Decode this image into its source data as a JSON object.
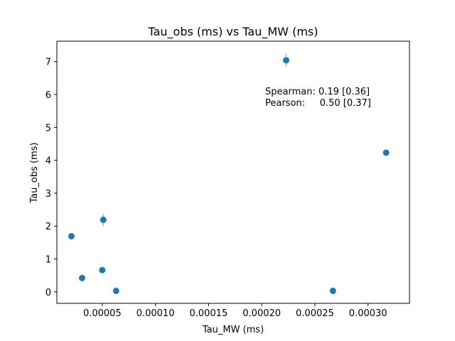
{
  "chart_data": {
    "type": "scatter",
    "title": "Tau_obs (ms) vs Tau_MW (ms)",
    "xlabel": "Tau_MW (ms)",
    "ylabel": "Tau_obs (ms)",
    "xlim": [
      7.3e-06,
      0.000339
    ],
    "ylim": [
      -0.35,
      7.62
    ],
    "xticks": [
      5e-05,
      0.0001,
      0.00015,
      0.0002,
      0.00025,
      0.0003
    ],
    "xtick_labels": [
      "0.00005",
      "0.00010",
      "0.00015",
      "0.00020",
      "0.00025",
      "0.00030"
    ],
    "yticks": [
      0,
      1,
      2,
      3,
      4,
      5,
      6,
      7
    ],
    "ytick_labels": [
      "0",
      "1",
      "2",
      "3",
      "4",
      "5",
      "6",
      "7"
    ],
    "grid": false,
    "series": [
      {
        "color": "#1f77b4",
        "errorbar_color": "#b0b0b0",
        "points": [
          {
            "x": 2.1e-05,
            "y": 1.69,
            "yerr": 0.05
          },
          {
            "x": 3.1e-05,
            "y": 0.42,
            "yerr": 0.04
          },
          {
            "x": 5e-05,
            "y": 0.66,
            "yerr": 0.04
          },
          {
            "x": 5.1e-05,
            "y": 2.19,
            "yerr": 0.18
          },
          {
            "x": 6.3e-05,
            "y": 0.03,
            "yerr": 0.03
          },
          {
            "x": 0.000223,
            "y": 7.04,
            "yerr": 0.2
          },
          {
            "x": 0.000267,
            "y": 0.03,
            "yerr": 0.03
          },
          {
            "x": 0.000317,
            "y": 4.23,
            "yerr": 0.06
          }
        ]
      }
    ],
    "annotations": [
      "Spearman: 0.19 [0.36]",
      "Pearson:     0.50 [0.37]"
    ]
  }
}
